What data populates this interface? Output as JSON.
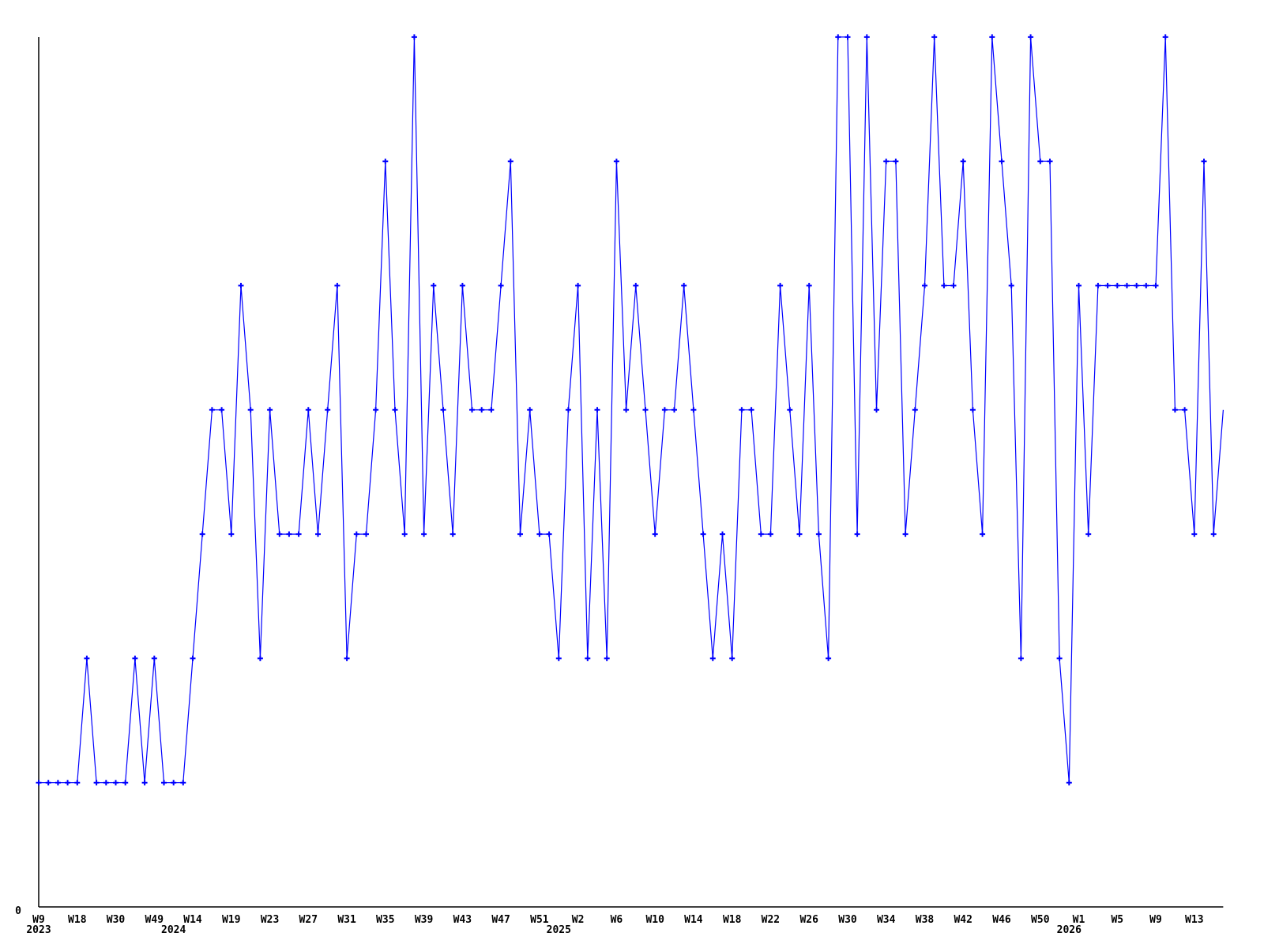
{
  "page": {
    "background_color": "#ffffff",
    "title": ""
  },
  "chart_data": {
    "type": "line",
    "title": "",
    "xlabel": "",
    "ylabel": "",
    "ylim": [
      0,
      7
    ],
    "grid": false,
    "legend": "none",
    "y_axis": {
      "labels_shown": [
        "0"
      ],
      "axis_color": "#000000"
    },
    "x_axis": {
      "tick_step": 4,
      "tick_labels": [
        "W9",
        "W18",
        "W30",
        "W49",
        "W14",
        "W19",
        "W23",
        "W27",
        "W31",
        "W35",
        "W39",
        "W43",
        "W47",
        "W51",
        "W2",
        "W6",
        "W10",
        "W14",
        "W18",
        "W22",
        "W26",
        "W30",
        "W34",
        "W38",
        "W42",
        "W46",
        "W50",
        "W1",
        "W5",
        "W9",
        "W13"
      ],
      "year_labels": [
        {
          "label": "2023",
          "point_index": 0
        },
        {
          "label": "2024",
          "point_index": 14
        },
        {
          "label": "2025",
          "point_index": 54
        },
        {
          "label": "2026",
          "point_index": 107
        }
      ]
    },
    "series": [
      {
        "name": "weekly-count",
        "color": "#0000ff",
        "marker": "plus",
        "last_point_marker": false,
        "values": [
          1,
          1,
          1,
          1,
          1,
          2,
          1,
          1,
          1,
          1,
          2,
          1,
          2,
          1,
          1,
          1,
          2,
          3,
          4,
          4,
          3,
          5,
          4,
          2,
          4,
          3,
          3,
          3,
          4,
          3,
          4,
          5,
          2,
          3,
          3,
          4,
          6,
          4,
          3,
          7,
          3,
          5,
          4,
          3,
          5,
          4,
          4,
          4,
          5,
          6,
          3,
          4,
          3,
          3,
          2,
          4,
          5,
          2,
          4,
          2,
          6,
          4,
          5,
          4,
          3,
          4,
          4,
          5,
          4,
          3,
          2,
          3,
          2,
          4,
          4,
          3,
          3,
          5,
          4,
          3,
          5,
          3,
          2,
          7,
          7,
          3,
          7,
          4,
          6,
          6,
          3,
          4,
          5,
          7,
          5,
          5,
          6,
          4,
          3,
          7,
          6,
          5,
          2,
          7,
          6,
          6,
          2,
          1,
          5,
          3,
          5,
          5,
          5,
          5,
          5,
          5,
          5,
          7,
          4,
          4,
          3,
          6,
          3,
          4
        ]
      }
    ]
  }
}
